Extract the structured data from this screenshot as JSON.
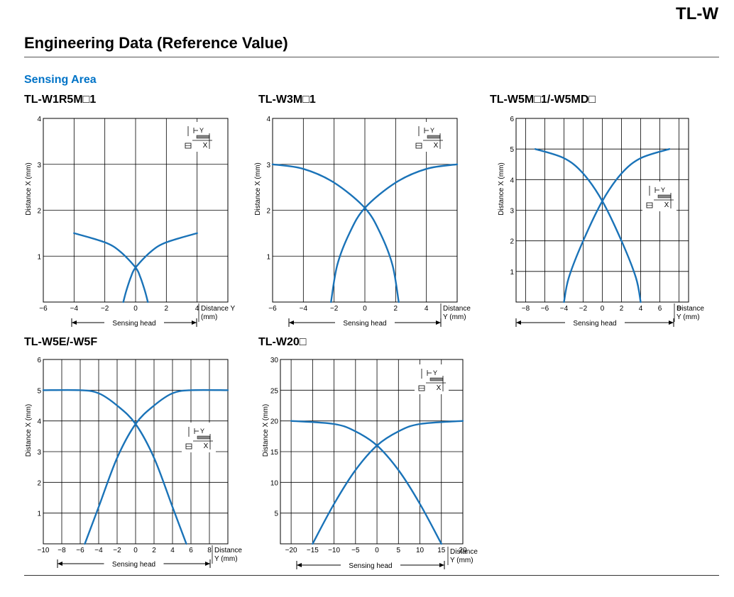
{
  "header": {
    "code": "TL-W"
  },
  "page": {
    "title": "Engineering Data (Reference Value)",
    "section": "Sensing Area"
  },
  "legend": {
    "y_label": "Y",
    "x_label": "X"
  },
  "colors": {
    "curve": "#1a73b8",
    "grid": "#000000",
    "accent": "#0073c7"
  },
  "chart_data": [
    {
      "title": "TL-W1R5M□1",
      "type": "line",
      "xlabel": "Distance Y\n(mm)",
      "ylabel": "Distance X (mm)",
      "sensing_head_label": "Sensing head",
      "xlim": [
        -6,
        6
      ],
      "ylim": [
        0,
        4
      ],
      "xticks": [
        -6,
        -4,
        -2,
        0,
        2,
        4
      ],
      "yticks": [
        1,
        2,
        3,
        4
      ],
      "grid": true,
      "series": [
        {
          "x": [
            -4,
            -2,
            -1,
            0,
            0.3,
            0.6,
            0.8
          ],
          "y": [
            1.5,
            1.3,
            1.1,
            0.75,
            0.55,
            0.25,
            0
          ]
        },
        {
          "x": [
            -0.8,
            -0.6,
            -0.3,
            0,
            1,
            2,
            4
          ],
          "y": [
            0,
            0.25,
            0.55,
            0.75,
            1.1,
            1.3,
            1.5
          ]
        }
      ]
    },
    {
      "title": "TL-W3M□1",
      "type": "line",
      "xlabel": "Distance\nY (mm)",
      "ylabel": "Distance X (mm)",
      "sensing_head_label": "Sensing head",
      "xlim": [
        -6,
        6
      ],
      "ylim": [
        0,
        4
      ],
      "xticks": [
        -6,
        -4,
        -2,
        0,
        2,
        4
      ],
      "yticks": [
        1,
        2,
        3,
        4
      ],
      "grid": true,
      "series": [
        {
          "x": [
            -6,
            -4,
            -2,
            0,
            1,
            1.8,
            2.2
          ],
          "y": [
            3,
            2.9,
            2.6,
            2.05,
            1.5,
            0.8,
            0
          ]
        },
        {
          "x": [
            -2.2,
            -1.8,
            -1,
            0,
            2,
            4,
            6
          ],
          "y": [
            0,
            0.8,
            1.5,
            2.05,
            2.6,
            2.9,
            3
          ]
        }
      ]
    },
    {
      "title": "TL-W5M□1/-W5MD□",
      "type": "line",
      "xlabel": "Distance\nY (mm)",
      "ylabel": "Distance X (mm)",
      "sensing_head_label": "Sensing head",
      "xlim": [
        -9,
        9
      ],
      "ylim": [
        0,
        6
      ],
      "xticks": [
        -8,
        -6,
        -4,
        -2,
        0,
        2,
        4,
        6,
        8
      ],
      "yticks": [
        1,
        2,
        3,
        4,
        5,
        6
      ],
      "grid": true,
      "series": [
        {
          "x": [
            -7,
            -4,
            -2,
            0,
            2,
            3.5,
            4
          ],
          "y": [
            5,
            4.7,
            4.2,
            3.3,
            2.0,
            0.8,
            0
          ]
        },
        {
          "x": [
            -4,
            -3.5,
            -2,
            0,
            2,
            4,
            7
          ],
          "y": [
            0,
            0.8,
            2.0,
            3.3,
            4.2,
            4.7,
            5
          ]
        }
      ]
    },
    {
      "title": "TL-W5E/-W5F",
      "type": "line",
      "xlabel": "Distance\nY (mm)",
      "ylabel": "Distance X (mm)",
      "sensing_head_label": "Sensing head",
      "xlim": [
        -10,
        10
      ],
      "ylim": [
        0,
        6
      ],
      "xticks": [
        -10,
        -8,
        -6,
        -4,
        -2,
        0,
        2,
        4,
        6,
        8
      ],
      "yticks": [
        1,
        2,
        3,
        4,
        5,
        6
      ],
      "grid": true,
      "series": [
        {
          "x": [
            -10,
            -6,
            -4,
            -2,
            0,
            2,
            4,
            5.5
          ],
          "y": [
            5,
            5,
            4.9,
            4.5,
            3.9,
            2.8,
            1.2,
            0
          ]
        },
        {
          "x": [
            -5.5,
            -4,
            -2,
            0,
            2,
            4,
            6,
            10
          ],
          "y": [
            0,
            1.2,
            2.8,
            3.9,
            4.5,
            4.9,
            5,
            5
          ]
        }
      ]
    },
    {
      "title": "TL-W20□",
      "type": "line",
      "xlabel": "Distance\nY (mm)",
      "ylabel": "Distance X (mm)",
      "sensing_head_label": "Sensing head",
      "xlim": [
        -22.5,
        20
      ],
      "ylim": [
        0,
        30
      ],
      "xticks": [
        -20,
        -15,
        -10,
        -5,
        0,
        5,
        10,
        15,
        20
      ],
      "yticks": [
        5,
        10,
        15,
        20,
        25,
        30
      ],
      "grid": true,
      "series": [
        {
          "x": [
            -20,
            -10,
            -5,
            0,
            5,
            10,
            15
          ],
          "y": [
            20,
            19.5,
            18.3,
            16,
            12,
            6.5,
            0
          ]
        },
        {
          "x": [
            -15,
            -10,
            -5,
            0,
            5,
            10,
            20
          ],
          "y": [
            0,
            6.5,
            12,
            16,
            18.3,
            19.5,
            20
          ]
        }
      ]
    }
  ]
}
